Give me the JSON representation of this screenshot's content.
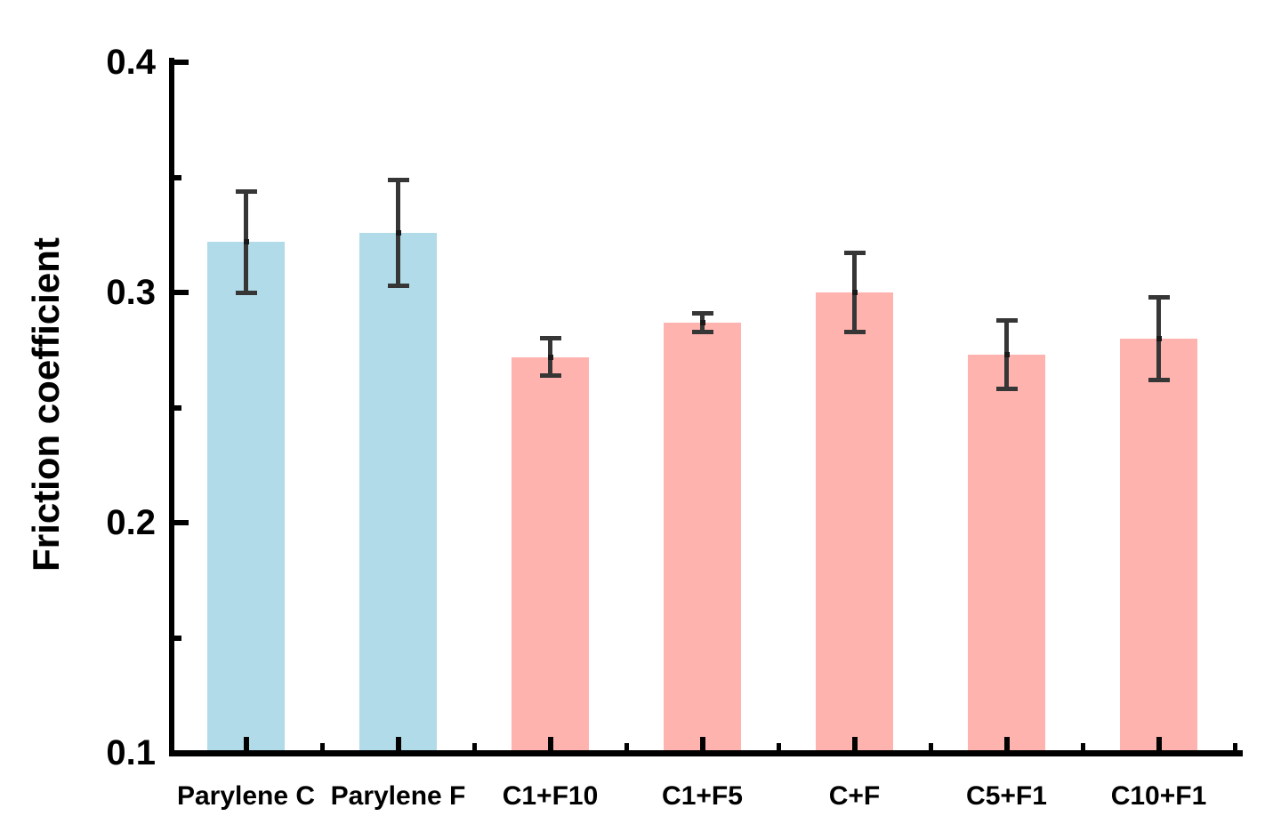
{
  "chart_data": {
    "type": "bar",
    "title": "",
    "xlabel": "",
    "ylabel": "Friction coefficient",
    "ylim": [
      0.1,
      0.4
    ],
    "ytick_values": [
      0.4,
      0.3,
      0.2,
      0.1
    ],
    "ytick_labels": [
      "0.4",
      "0.3",
      "0.2",
      "0.1"
    ],
    "yminor_values": [
      0.35,
      0.25,
      0.15
    ],
    "grid": false,
    "legend": "none",
    "categories": [
      "Parylene C",
      "Parylene F",
      "C1+F10",
      "C1+F5",
      "C+F",
      "C5+F1",
      "C10+F1"
    ],
    "values": [
      0.322,
      0.326,
      0.272,
      0.287,
      0.3,
      0.273,
      0.28
    ],
    "errors": [
      0.022,
      0.023,
      0.008,
      0.004,
      0.017,
      0.015,
      0.018
    ],
    "bar_colors": [
      "#B1DBE8",
      "#B1DBE8",
      "#FFB3AF",
      "#FFB3AF",
      "#FFB3AF",
      "#FFB3AF",
      "#FFB3AF"
    ],
    "colors": {
      "parylene_bars": "#B1DBE8",
      "composite_bars": "#FFB3AF",
      "error_bars": "#363636",
      "axis": "#000000",
      "background": "#FFFFFF"
    }
  }
}
